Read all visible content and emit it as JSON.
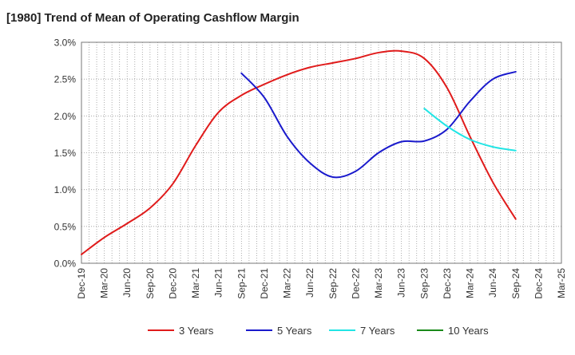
{
  "chart_data": {
    "type": "line",
    "title": "[1980]  Trend of Mean of Operating Cashflow Margin",
    "xlabel": "",
    "ylabel": "",
    "x": [
      "Dec-19",
      "Mar-20",
      "Jun-20",
      "Sep-20",
      "Dec-20",
      "Mar-21",
      "Jun-21",
      "Sep-21",
      "Dec-21",
      "Mar-22",
      "Jun-22",
      "Sep-22",
      "Dec-22",
      "Mar-23",
      "Jun-23",
      "Sep-23",
      "Dec-23",
      "Mar-24",
      "Jun-24",
      "Sep-24",
      "Dec-24",
      "Mar-25"
    ],
    "x_tick_labels": [
      "Dec-19",
      "Mar-20",
      "Jun-20",
      "Sep-20",
      "Dec-20",
      "Mar-21",
      "Jun-21",
      "Sep-21",
      "Dec-21",
      "Mar-22",
      "Jun-22",
      "Sep-22",
      "Dec-22",
      "Mar-23",
      "Jun-23",
      "Sep-23",
      "Dec-23",
      "Mar-24",
      "Jun-24",
      "Sep-24",
      "Dec-24",
      "Mar-25"
    ],
    "ylim": [
      0,
      3.0
    ],
    "y_ticks": [
      0,
      0.5,
      1.0,
      1.5,
      2.0,
      2.5,
      3.0
    ],
    "y_tick_labels": [
      "0.0%",
      "0.5%",
      "1.0%",
      "1.5%",
      "2.0%",
      "2.5%",
      "3.0%"
    ],
    "grid": true,
    "legend_position": "bottom",
    "series": [
      {
        "name": "3 Years",
        "color": "#e01b1b",
        "values": [
          0.12,
          0.35,
          0.54,
          0.75,
          1.08,
          1.6,
          2.05,
          2.28,
          2.43,
          2.56,
          2.66,
          2.72,
          2.78,
          2.86,
          2.88,
          2.78,
          2.38,
          1.72,
          1.1,
          0.6,
          null,
          null
        ]
      },
      {
        "name": "5 Years",
        "color": "#1a1acc",
        "values": [
          null,
          null,
          null,
          null,
          null,
          null,
          null,
          2.58,
          2.25,
          1.72,
          1.36,
          1.17,
          1.25,
          1.5,
          1.65,
          1.66,
          1.82,
          2.2,
          2.5,
          2.6,
          null,
          null
        ]
      },
      {
        "name": "7 Years",
        "color": "#22e5e5",
        "values": [
          null,
          null,
          null,
          null,
          null,
          null,
          null,
          null,
          null,
          null,
          null,
          null,
          null,
          null,
          null,
          2.1,
          1.86,
          1.68,
          1.58,
          1.53,
          null,
          null
        ]
      },
      {
        "name": "10 Years",
        "color": "#1a8a1a",
        "values": [
          null,
          null,
          null,
          null,
          null,
          null,
          null,
          null,
          null,
          null,
          null,
          null,
          null,
          null,
          null,
          null,
          null,
          null,
          null,
          null,
          null,
          null
        ]
      }
    ]
  }
}
